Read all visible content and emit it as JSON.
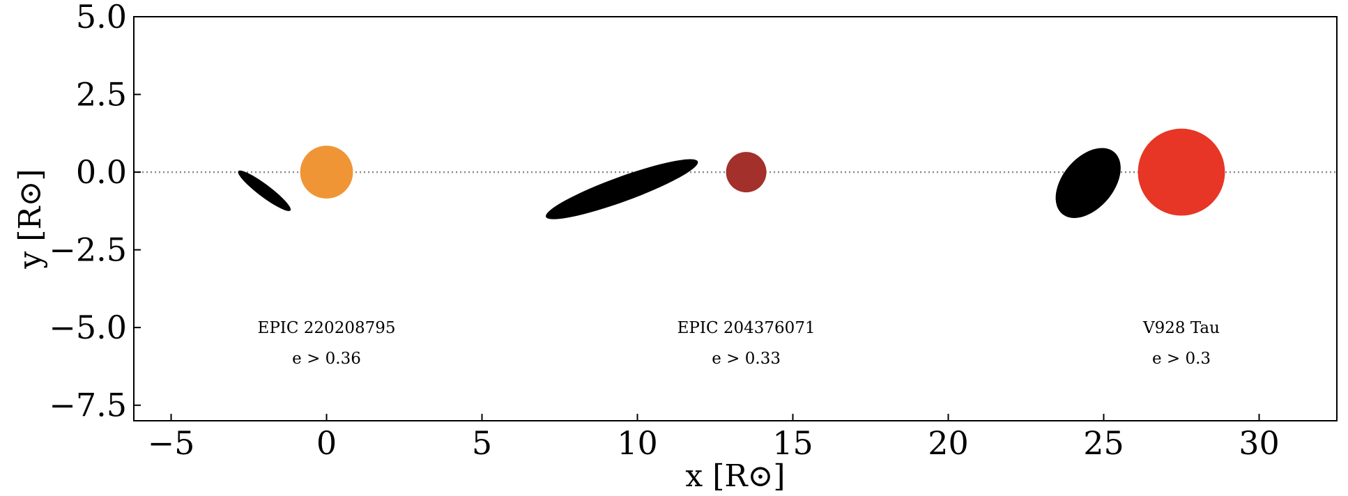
{
  "chart_data": {
    "type": "scatter",
    "title": "",
    "xlabel": "x [R⊙]",
    "ylabel": "y [R⊙]",
    "xlim": [
      -6.2,
      32.5
    ],
    "ylim": [
      -8.0,
      5.0
    ],
    "xticks": [
      -5,
      0,
      5,
      10,
      15,
      20,
      25,
      30
    ],
    "yticks": [
      5.0,
      2.5,
      0.0,
      -2.5,
      -5.0,
      -7.5
    ],
    "xtick_labels": [
      "−5",
      "0",
      "5",
      "10",
      "15",
      "20",
      "25",
      "30"
    ],
    "ytick_labels": [
      "5.0",
      "2.5",
      "0.0",
      "−2.5",
      "−5.0",
      "−7.5"
    ],
    "reference_line": {
      "y": 0.0,
      "style": "dotted",
      "color": "#888888"
    },
    "systems": [
      {
        "name": "EPIC 220208795",
        "eccentricity_label": "e > 0.36",
        "star": {
          "x": 0.0,
          "y": 0.0,
          "radius": 0.85,
          "color": "#f09536"
        },
        "orbit": {
          "cx": -2.0,
          "cy": -0.6,
          "semi_major": 1.05,
          "semi_minor": 0.2,
          "angle_deg": -37,
          "color": "#000000"
        }
      },
      {
        "name": "EPIC 204376071",
        "eccentricity_label": "e > 0.33",
        "star": {
          "x": 13.5,
          "y": 0.0,
          "radius": 0.65,
          "color": "#a3302b"
        },
        "orbit": {
          "cx": 9.5,
          "cy": -0.55,
          "semi_major": 2.6,
          "semi_minor": 0.4,
          "angle_deg": 20,
          "color": "#000000"
        }
      },
      {
        "name": "V928 Tau",
        "eccentricity_label": "e > 0.3",
        "star": {
          "x": 27.5,
          "y": 0.0,
          "radius": 1.4,
          "color": "#e73625"
        },
        "orbit": {
          "cx": 24.5,
          "cy": -0.35,
          "semi_major": 1.3,
          "semi_minor": 0.82,
          "angle_deg": 50,
          "color": "#000000"
        }
      }
    ]
  }
}
